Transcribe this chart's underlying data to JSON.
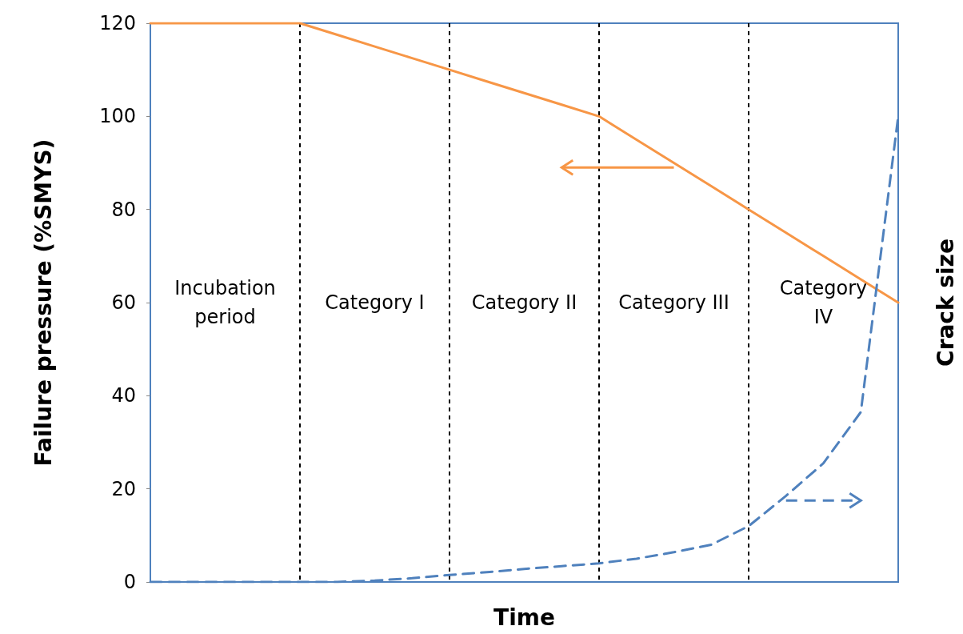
{
  "chart_data": {
    "type": "line",
    "xlabel": "Time",
    "ylabel": "Failure pressure (%SMYS)",
    "y2label": "Crack size",
    "categories": [
      null,
      null,
      null,
      null,
      null,
      null,
      null,
      null,
      null,
      null,
      null,
      null,
      null,
      null,
      null,
      null,
      null,
      null,
      null,
      null,
      null
    ],
    "series": [
      {
        "color": "#f79646",
        "line_style": "solid",
        "values": [
          120,
          120,
          120,
          120,
          120,
          117.5,
          115,
          112.5,
          110,
          107.5,
          105,
          102.5,
          100,
          95,
          90,
          85,
          80,
          75,
          70,
          65,
          60
        ]
      },
      {
        "color": "#4f81bd",
        "line_style": "dashed",
        "values": [
          0,
          0,
          0,
          0,
          0,
          0,
          0.3,
          0.8,
          1.5,
          2.1,
          2.8,
          3.4,
          4,
          5,
          6.4,
          8,
          12,
          18.5,
          25.5,
          36.5,
          100
        ]
      }
    ],
    "ylim": [
      0,
      120
    ],
    "yticks": [
      0,
      20,
      40,
      60,
      80,
      100,
      120
    ],
    "tick_labels": "y",
    "grid": "x",
    "marker": "none",
    "annotations": [
      "Incubation\nperiod",
      "Category I",
      "Category II",
      "Category III",
      "Category\nIV"
    ]
  }
}
